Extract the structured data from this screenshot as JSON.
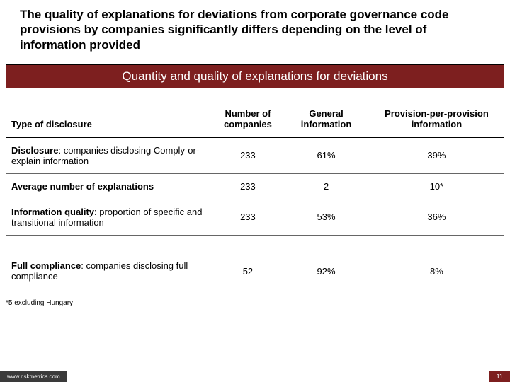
{
  "title": "The quality of explanations for deviations from corporate governance code provisions by companies significantly differs depending on the level of information provided",
  "banner": "Quantity and quality of explanations for deviations",
  "table": {
    "headers": {
      "type": "Type of disclosure",
      "num": "Number of companies",
      "gen": "General information",
      "prov": "Provision-per-provision information"
    },
    "rows": [
      {
        "label_bold": "Disclosure",
        "label_rest": ": companies disclosing Comply-or-explain information",
        "num": "233",
        "gen": "61%",
        "prov": "39%"
      },
      {
        "label_bold": "Average number of explanations",
        "label_rest": "",
        "num": "233",
        "gen": "2",
        "prov": "10*"
      },
      {
        "label_bold": "Information quality",
        "label_rest": ": proportion of specific and transitional information",
        "num": "233",
        "gen": "53%",
        "prov": "36%"
      },
      {
        "label_bold": "Full compliance",
        "label_rest": ": companies disclosing full compliance",
        "num": "52",
        "gen": "92%",
        "prov": "8%"
      }
    ]
  },
  "footnote": "*5 excluding Hungary",
  "footer": {
    "url": "www.riskmetrics.com",
    "page": "11"
  },
  "colors": {
    "banner_bg": "#7d1f1f",
    "footer_left_bg": "#3a3a3a",
    "footer_right_bg": "#7d1f1f"
  }
}
